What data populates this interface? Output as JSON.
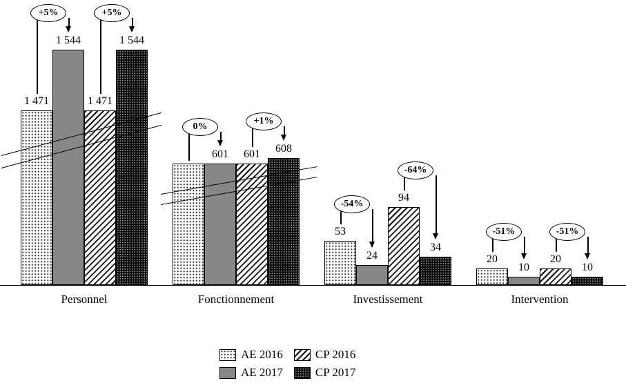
{
  "chart_data": {
    "type": "bar",
    "title": "",
    "categories": [
      "Personnel",
      "Fonctionnement",
      "Investissement",
      "Intervention"
    ],
    "series": [
      {
        "name": "AE 2016",
        "pattern": "dots",
        "values": [
          1471,
          601,
          53,
          20
        ],
        "value_labels": [
          "1 471",
          null,
          "53",
          "20"
        ]
      },
      {
        "name": "AE 2017",
        "pattern": "solid-gray",
        "values": [
          1544,
          601,
          24,
          10
        ],
        "value_labels": [
          "1 544",
          "601",
          "24",
          "10"
        ]
      },
      {
        "name": "CP 2016",
        "pattern": "diagonal",
        "values": [
          1471,
          601,
          94,
          20
        ],
        "value_labels": [
          "1 471",
          "601",
          "94",
          "20"
        ]
      },
      {
        "name": "CP 2017",
        "pattern": "black-dots",
        "values": [
          1544,
          608,
          34,
          10
        ],
        "value_labels": [
          "1 544",
          "608",
          "34",
          "10"
        ]
      }
    ],
    "annotations": [
      {
        "category": 0,
        "from_series": 0,
        "to_series": 1,
        "label": "+5%"
      },
      {
        "category": 0,
        "from_series": 2,
        "to_series": 3,
        "label": "+5%"
      },
      {
        "category": 1,
        "from_series": 0,
        "to_series": 1,
        "label": "0%"
      },
      {
        "category": 1,
        "from_series": 2,
        "to_series": 3,
        "label": "+1%"
      },
      {
        "category": 2,
        "from_series": 0,
        "to_series": 1,
        "label": "-54%"
      },
      {
        "category": 2,
        "from_series": 2,
        "to_series": 3,
        "label": "-64%"
      },
      {
        "category": 3,
        "from_series": 0,
        "to_series": 1,
        "label": "-51%"
      },
      {
        "category": 3,
        "from_series": 2,
        "to_series": 3,
        "label": "-51%"
      }
    ],
    "axis_break": true,
    "grid": false,
    "legend_position": "bottom"
  },
  "legend": {
    "items": [
      {
        "label": "AE 2016",
        "pattern": "dots"
      },
      {
        "label": "CP 2016",
        "pattern": "diagonal"
      },
      {
        "label": "AE 2017",
        "pattern": "solid-gray"
      },
      {
        "label": "CP 2017",
        "pattern": "black-dots"
      }
    ]
  },
  "colors": {
    "bar_gray": "#878787",
    "ink": "#000000",
    "background": "#ffffff"
  }
}
